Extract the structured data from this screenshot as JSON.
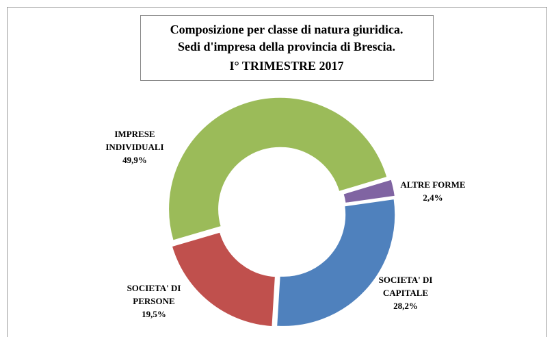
{
  "chart_data": {
    "type": "donut",
    "title": [
      "Composizione per classe di natura giuridica.",
      "Sedi d'impresa della provincia di Brescia.",
      "I° TRIMESTRE 2017"
    ],
    "categories": [
      "IMPRESE\nINDIVIDUALI",
      "ALTRE FORME",
      "SOCIETA' DI\nCAPITALE",
      "SOCIETA' DI\nPERSONE"
    ],
    "values": [
      49.9,
      2.4,
      28.2,
      19.5
    ],
    "value_labels": [
      "49,9%",
      "2,4%",
      "28,2%",
      "19,5%"
    ],
    "colors": [
      "#9bbb59",
      "#8064a2",
      "#4f81bd",
      "#c0504d"
    ]
  }
}
